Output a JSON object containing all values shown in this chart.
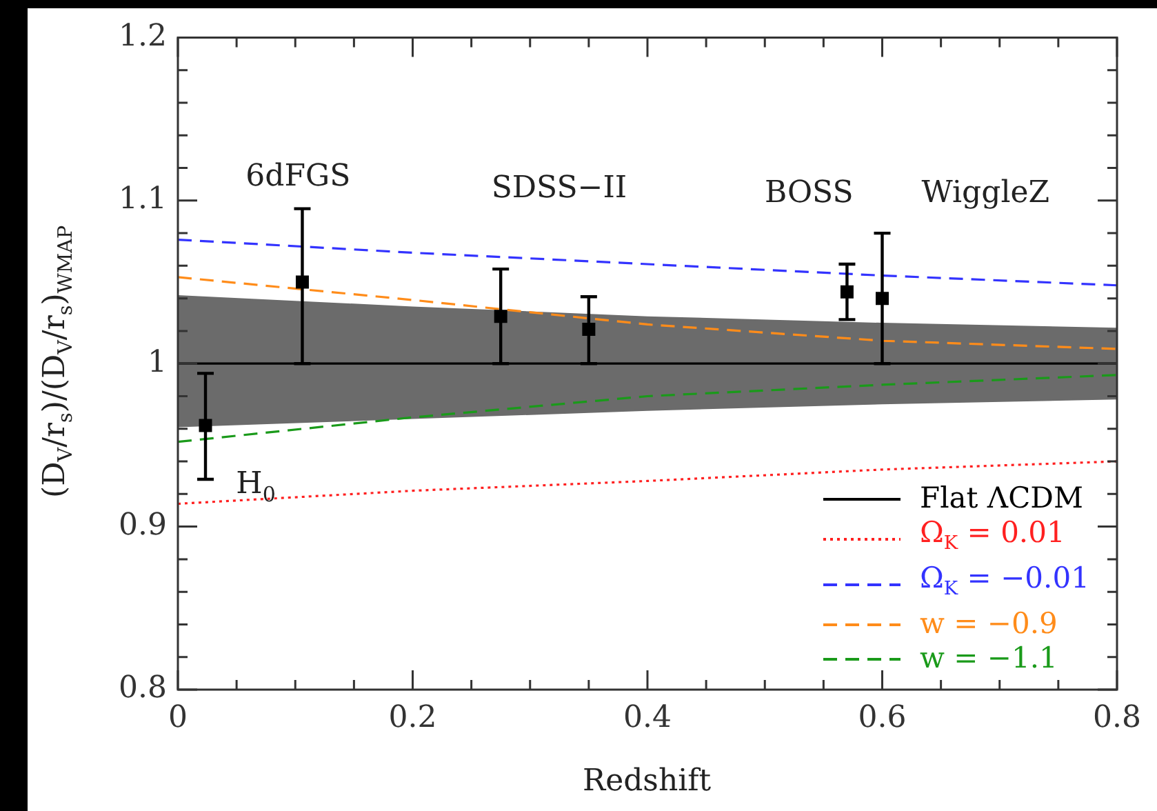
{
  "chart_data": {
    "type": "line",
    "xlabel": "Redshift",
    "ylabel": "(D$_{V}$/r$_{s}$)/(D$_{V}$/r$_{s}$)$_{WMAP}$",
    "xlim": [
      0,
      0.8
    ],
    "ylim": [
      0.8,
      1.2
    ],
    "xticks": [
      0,
      {
        "value": 0.05,
        "label": null
      },
      {
        "value": 0.1,
        "label": null
      },
      {
        "value": 0.15,
        "label": null
      },
      0.2,
      {
        "value": 0.25,
        "label": null
      },
      {
        "value": 0.3,
        "label": null
      },
      {
        "value": 0.35,
        "label": null
      },
      0.4,
      {
        "value": 0.45,
        "label": null
      },
      {
        "value": 0.5,
        "label": null
      },
      {
        "value": 0.55,
        "label": null
      },
      0.6,
      {
        "value": 0.65,
        "label": null
      },
      {
        "value": 0.7,
        "label": null
      },
      {
        "value": 0.75,
        "label": null
      },
      0.8
    ],
    "yticks": [
      0.8,
      {
        "value": 0.82,
        "label": null
      },
      {
        "value": 0.84,
        "label": null
      },
      {
        "value": 0.86,
        "label": null
      },
      {
        "value": 0.88,
        "label": null
      },
      0.9,
      {
        "value": 0.92,
        "label": null
      },
      {
        "value": 0.94,
        "label": null
      },
      {
        "value": 0.96,
        "label": null
      },
      {
        "value": 0.98,
        "label": null
      },
      1,
      {
        "value": 1.02,
        "label": null
      },
      {
        "value": 1.04,
        "label": null
      },
      {
        "value": 1.06,
        "label": null
      },
      {
        "value": 1.08,
        "label": null
      },
      1.1,
      {
        "value": 1.12,
        "label": null
      },
      {
        "value": 1.14,
        "label": null
      },
      {
        "value": 1.16,
        "label": null
      },
      {
        "value": 1.18,
        "label": null
      },
      1.2
    ],
    "grid": false,
    "legend": "bottom right",
    "series": [
      {
        "name": "Flat ΛCDM",
        "color": "#000000",
        "line_style": "solid",
        "x": [
          0,
          0.2,
          0.4,
          0.6,
          0.8
        ],
        "values": [
          1,
          1,
          1,
          1,
          1
        ],
        "lower": [
          0.961,
          0.966,
          0.971,
          0.975,
          0.978
        ],
        "upper": [
          1.042,
          1.035,
          1.029,
          1.025,
          1.022
        ]
      },
      {
        "name": "Ω$_{K}$ = 0.01",
        "color": "#ff2020",
        "line_style": "dotted",
        "x": [
          0,
          0.2,
          0.4,
          0.6,
          0.8
        ],
        "values": [
          0.914,
          0.922,
          0.928,
          0.935,
          0.94
        ]
      },
      {
        "name": "Ω$_{K}$ = −0.01",
        "color": "#3333ff",
        "line_style": "dashed",
        "x": [
          0,
          0.2,
          0.4,
          0.6,
          0.8
        ],
        "values": [
          1.076,
          1.068,
          1.061,
          1.054,
          1.048
        ]
      },
      {
        "name": "w = −0.9",
        "color": "#ff8c1a",
        "line_style": "dashed",
        "x": [
          0,
          0.2,
          0.4,
          0.6,
          0.8
        ],
        "values": [
          1.053,
          1.039,
          1.024,
          1.014,
          1.009
        ]
      },
      {
        "name": "w = −1.1",
        "color": "#1a9a1a",
        "line_style": "dashed",
        "x": [
          0,
          0.2,
          0.4,
          0.6,
          0.8
        ],
        "values": [
          0.952,
          0.967,
          0.98,
          0.987,
          0.993
        ]
      },
      {
        "type": "scatter",
        "color": "#000000",
        "marker": "square",
        "x": [
          0.0235,
          0.106,
          0.275,
          0.35,
          0.57,
          0.6
        ],
        "values": [
          0.962,
          1.05,
          1.029,
          1.021,
          1.044,
          1.04
        ],
        "errors": [
          [
            0.929,
            0.994
          ],
          [
            1.0,
            1.095
          ],
          [
            1.0,
            1.058
          ],
          [
            1.0,
            1.041
          ],
          [
            1.027,
            1.061
          ],
          [
            1.0,
            1.08
          ]
        ]
      }
    ],
    "annotations": [
      "6dFGS",
      "SDSS−II",
      "BOSS",
      "WiggleZ",
      "H$_{0}$"
    ]
  }
}
